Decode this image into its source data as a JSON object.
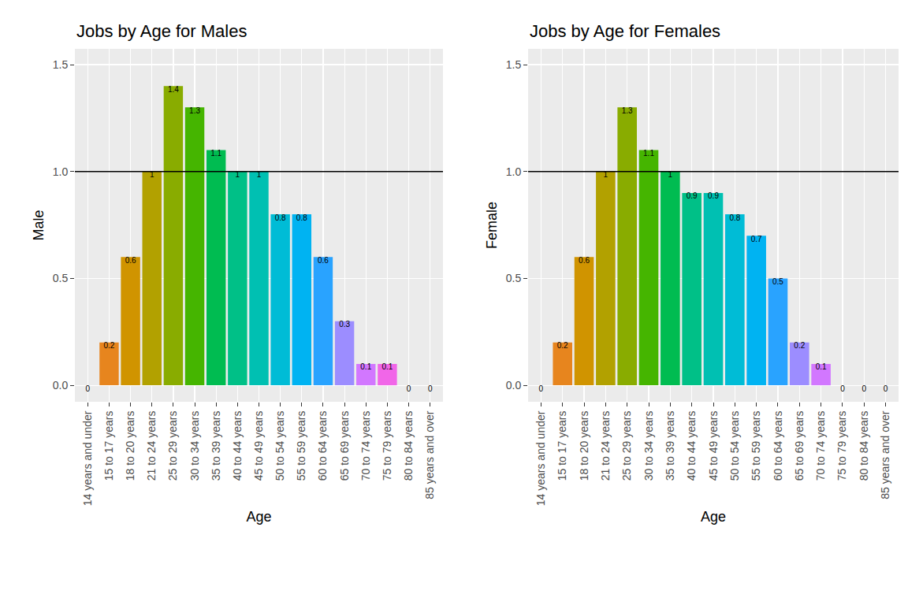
{
  "chart_data": [
    {
      "type": "bar",
      "title": "Jobs by Age for Males",
      "x_label": "Age",
      "y_label": "Male",
      "categories": [
        "14 years and under",
        "15 to 17 years",
        "18 to 20 years",
        "21 to 24 years",
        "25 to 29 years",
        "30 to 34 years",
        "35 to 39 years",
        "40 to 44 years",
        "45 to 49 years",
        "50 to 54 years",
        "55 to 59 years",
        "60 to 64 years",
        "65 to 69 years",
        "70 to 74 years",
        "75 to 79 years",
        "80 to 84 years",
        "85 years and over"
      ],
      "values": [
        0,
        0.2,
        0.6,
        1,
        1.4,
        1.3,
        1.1,
        1,
        1,
        0.8,
        0.8,
        0.6,
        0.3,
        0.1,
        0.1,
        0,
        0
      ],
      "colors": [
        "#F8766D",
        "#E7851E",
        "#D09400",
        "#B2A100",
        "#89AC00",
        "#45B500",
        "#00BC51",
        "#00C087",
        "#00C0B2",
        "#00BCD6",
        "#00B3F2",
        "#29A3FF",
        "#9C8DFF",
        "#D277FF",
        "#F166E8",
        "#FF61C7",
        "#FF689F"
      ],
      "ylim": [
        -0.077,
        1.574
      ],
      "yticks": [
        {
          "value": 0,
          "label": "0.0"
        },
        {
          "value": 0.5,
          "label": "0.5"
        },
        {
          "value": 1,
          "label": "1.0"
        },
        {
          "value": 1.5,
          "label": "1.5"
        }
      ],
      "reference_line": 1,
      "grid": true,
      "data_labels": true
    },
    {
      "type": "bar",
      "title": "Jobs by Age for Females",
      "x_label": "Age",
      "y_label": "Female",
      "categories": [
        "14 years and under",
        "15 to 17 years",
        "18 to 20 years",
        "21 to 24 years",
        "25 to 29 years",
        "30 to 34 years",
        "35 to 39 years",
        "40 to 44 years",
        "45 to 49 years",
        "50 to 54 years",
        "55 to 59 years",
        "60 to 64 years",
        "65 to 69 years",
        "70 to 74 years",
        "75 to 79 years",
        "80 to 84 years",
        "85 years and over"
      ],
      "values": [
        0,
        0.2,
        0.6,
        1,
        1.3,
        1.1,
        1,
        0.9,
        0.9,
        0.8,
        0.7,
        0.5,
        0.2,
        0.1,
        0,
        0,
        0
      ],
      "colors": [
        "#F8766D",
        "#E7851E",
        "#D09400",
        "#B2A100",
        "#89AC00",
        "#45B500",
        "#00BC51",
        "#00C087",
        "#00C0B2",
        "#00BCD6",
        "#00B3F2",
        "#29A3FF",
        "#9C8DFF",
        "#D277FF",
        "#F166E8",
        "#FF61C7",
        "#FF689F"
      ],
      "ylim": [
        -0.077,
        1.574
      ],
      "yticks": [
        {
          "value": 0,
          "label": "0.0"
        },
        {
          "value": 0.5,
          "label": "0.5"
        },
        {
          "value": 1,
          "label": "1.0"
        },
        {
          "value": 1.5,
          "label": "1.5"
        }
      ],
      "reference_line": 1,
      "grid": true,
      "data_labels": true
    }
  ]
}
